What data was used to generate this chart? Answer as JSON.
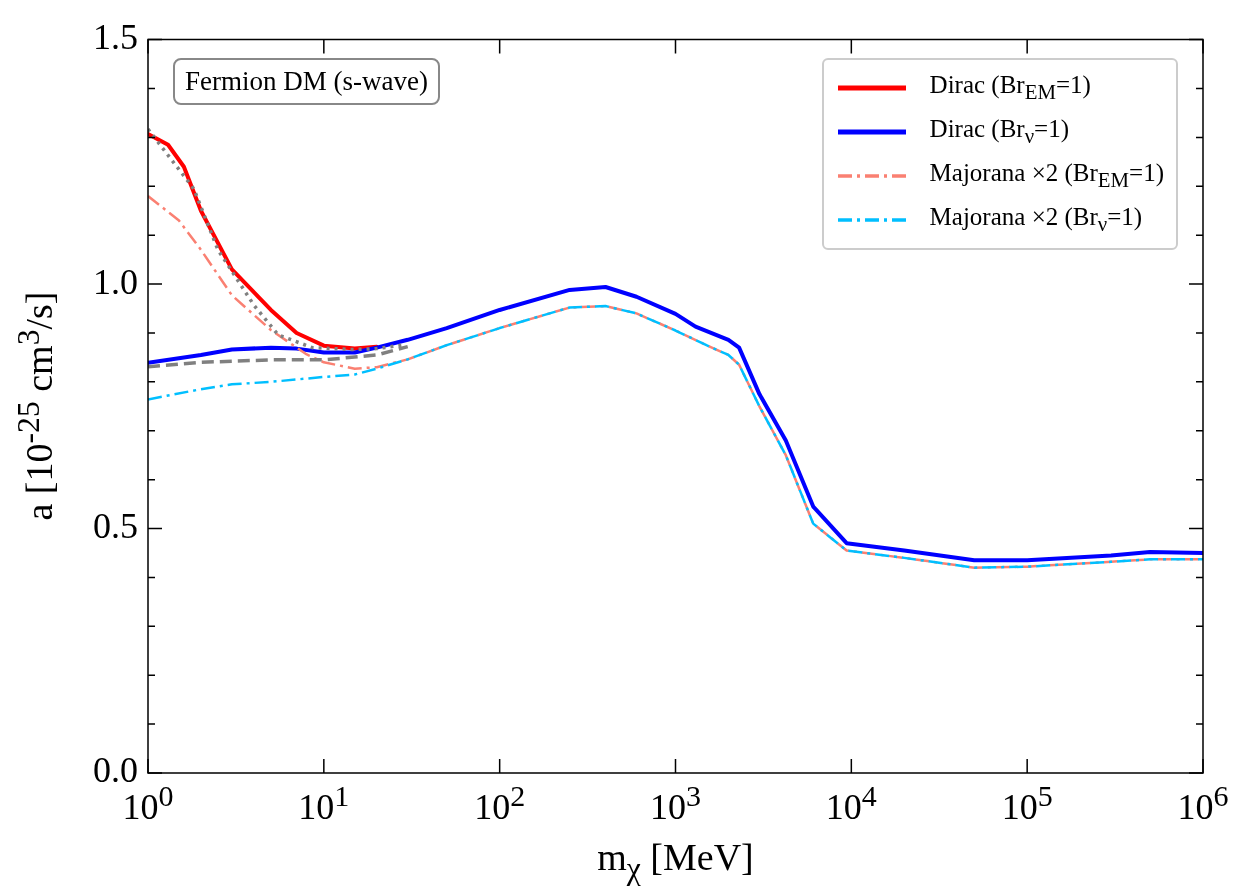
{
  "chart_data": {
    "type": "line",
    "xlabel": "m$_{χ}$ [MeV]",
    "ylabel": "a [10$^{-25}$ cm$^{3}$/s]",
    "annotations": [
      "Fermion DM (s-wave)"
    ],
    "log": "x",
    "xlim": [
      1,
      1000000
    ],
    "xticks": [
      {
        "value": 1,
        "label": "10$^{0}$"
      },
      {
        "value": 10,
        "label": "10$^{1}$"
      },
      {
        "value": 100,
        "label": "10$^{2}$"
      },
      {
        "value": 1000,
        "label": "10$^{3}$"
      },
      {
        "value": 10000,
        "label": "10$^{4}$"
      },
      {
        "value": 100000,
        "label": "10$^{5}$"
      },
      {
        "value": 1000000,
        "label": "10$^{6}$"
      }
    ],
    "ylim": [
      0,
      1.5
    ],
    "yticks": [
      {
        "value": 0,
        "label": "0.0"
      },
      {
        "value": 0.1,
        "label": null
      },
      {
        "value": 0.2,
        "label": null
      },
      {
        "value": 0.3,
        "label": null
      },
      {
        "value": 0.4,
        "label": null
      },
      {
        "value": 0.5,
        "label": "0.5"
      },
      {
        "value": 0.6,
        "label": null
      },
      {
        "value": 0.7,
        "label": null
      },
      {
        "value": 0.8,
        "label": null
      },
      {
        "value": 0.9,
        "label": null
      },
      {
        "value": 1,
        "label": "1.0"
      },
      {
        "value": 1.1,
        "label": null
      },
      {
        "value": 1.2,
        "label": null
      },
      {
        "value": 1.3,
        "label": null
      },
      {
        "value": 1.4,
        "label": null
      },
      {
        "value": 1.5,
        "label": "1.5"
      }
    ],
    "grid": false,
    "legend": "top right",
    "marker": "none",
    "series": [
      {
        "name": "Dirac (Br$_{EM}$=1)",
        "color": "#ff0000",
        "line_style": "solid",
        "x": [
          1,
          1.3,
          1.6,
          2,
          3,
          5,
          7,
          10,
          15,
          20
        ],
        "values": [
          1.307,
          1.285,
          1.24,
          1.15,
          1.03,
          0.947,
          0.9,
          0.874,
          0.868,
          0.872
        ]
      },
      {
        "name": "Dirac (Br$_{ν}$=1)",
        "color": "#0000ff",
        "line_style": "solid",
        "x": [
          1,
          2,
          3,
          5,
          7,
          10,
          15,
          20,
          30,
          50,
          100,
          250,
          400,
          600,
          1000,
          1300,
          2000,
          2300,
          3000,
          4240,
          6070,
          9400,
          20000,
          50000,
          100000,
          300000,
          500000,
          1000000
        ],
        "values": [
          0.839,
          0.855,
          0.866,
          0.87,
          0.868,
          0.86,
          0.86,
          0.87,
          0.886,
          0.91,
          0.947,
          0.988,
          0.994,
          0.974,
          0.939,
          0.913,
          0.886,
          0.87,
          0.775,
          0.68,
          0.545,
          0.47,
          0.455,
          0.435,
          0.435,
          0.445,
          0.452,
          0.45
        ]
      },
      {
        "name": "Majorana ×2 (Br$_{EM}$=1)",
        "color": "#fa8072",
        "line_style": "dashdot",
        "x": [
          1,
          1.5,
          2,
          3,
          5,
          8,
          10,
          15,
          20,
          30,
          50,
          100,
          250,
          400,
          600,
          1000,
          1500,
          2000,
          2300,
          3000,
          4240,
          6070,
          9400,
          20000,
          50000,
          100000,
          300000,
          500000,
          1000000
        ],
        "values": [
          1.18,
          1.13,
          1.07,
          0.977,
          0.906,
          0.856,
          0.84,
          0.827,
          0.83,
          0.846,
          0.875,
          0.91,
          0.952,
          0.955,
          0.94,
          0.905,
          0.875,
          0.855,
          0.835,
          0.75,
          0.65,
          0.51,
          0.455,
          0.44,
          0.42,
          0.422,
          0.432,
          0.437,
          0.437
        ]
      },
      {
        "name": "Majorana ×2 (Br$_{ν}$=1)",
        "color": "#00bfff",
        "line_style": "dashdot",
        "x": [
          1,
          2,
          3,
          5,
          10,
          15,
          20,
          30,
          50,
          100,
          250,
          400,
          600,
          1000,
          1500,
          2000,
          2300,
          3000,
          4240,
          6070,
          9400,
          20000,
          50000,
          100000,
          300000,
          500000,
          1000000
        ],
        "values": [
          0.764,
          0.785,
          0.795,
          0.8,
          0.81,
          0.815,
          0.827,
          0.846,
          0.875,
          0.91,
          0.952,
          0.955,
          0.94,
          0.905,
          0.875,
          0.855,
          0.835,
          0.75,
          0.65,
          0.51,
          0.455,
          0.44,
          0.42,
          0.422,
          0.432,
          0.437,
          0.437
        ]
      },
      {
        "color": "#808080",
        "line_style": "dotted",
        "x": [
          1,
          1.82,
          2.5,
          4,
          5.5,
          8.6,
          14.5,
          20,
          29
        ],
        "values": [
          1.317,
          1.195,
          1.07,
          0.957,
          0.896,
          0.87,
          0.866,
          0.868,
          0.876
        ]
      },
      {
        "color": "#808080",
        "line_style": "dashed",
        "x": [
          1,
          2,
          5,
          10,
          20,
          30
        ],
        "values": [
          0.831,
          0.84,
          0.845,
          0.845,
          0.855,
          0.872
        ]
      }
    ]
  }
}
